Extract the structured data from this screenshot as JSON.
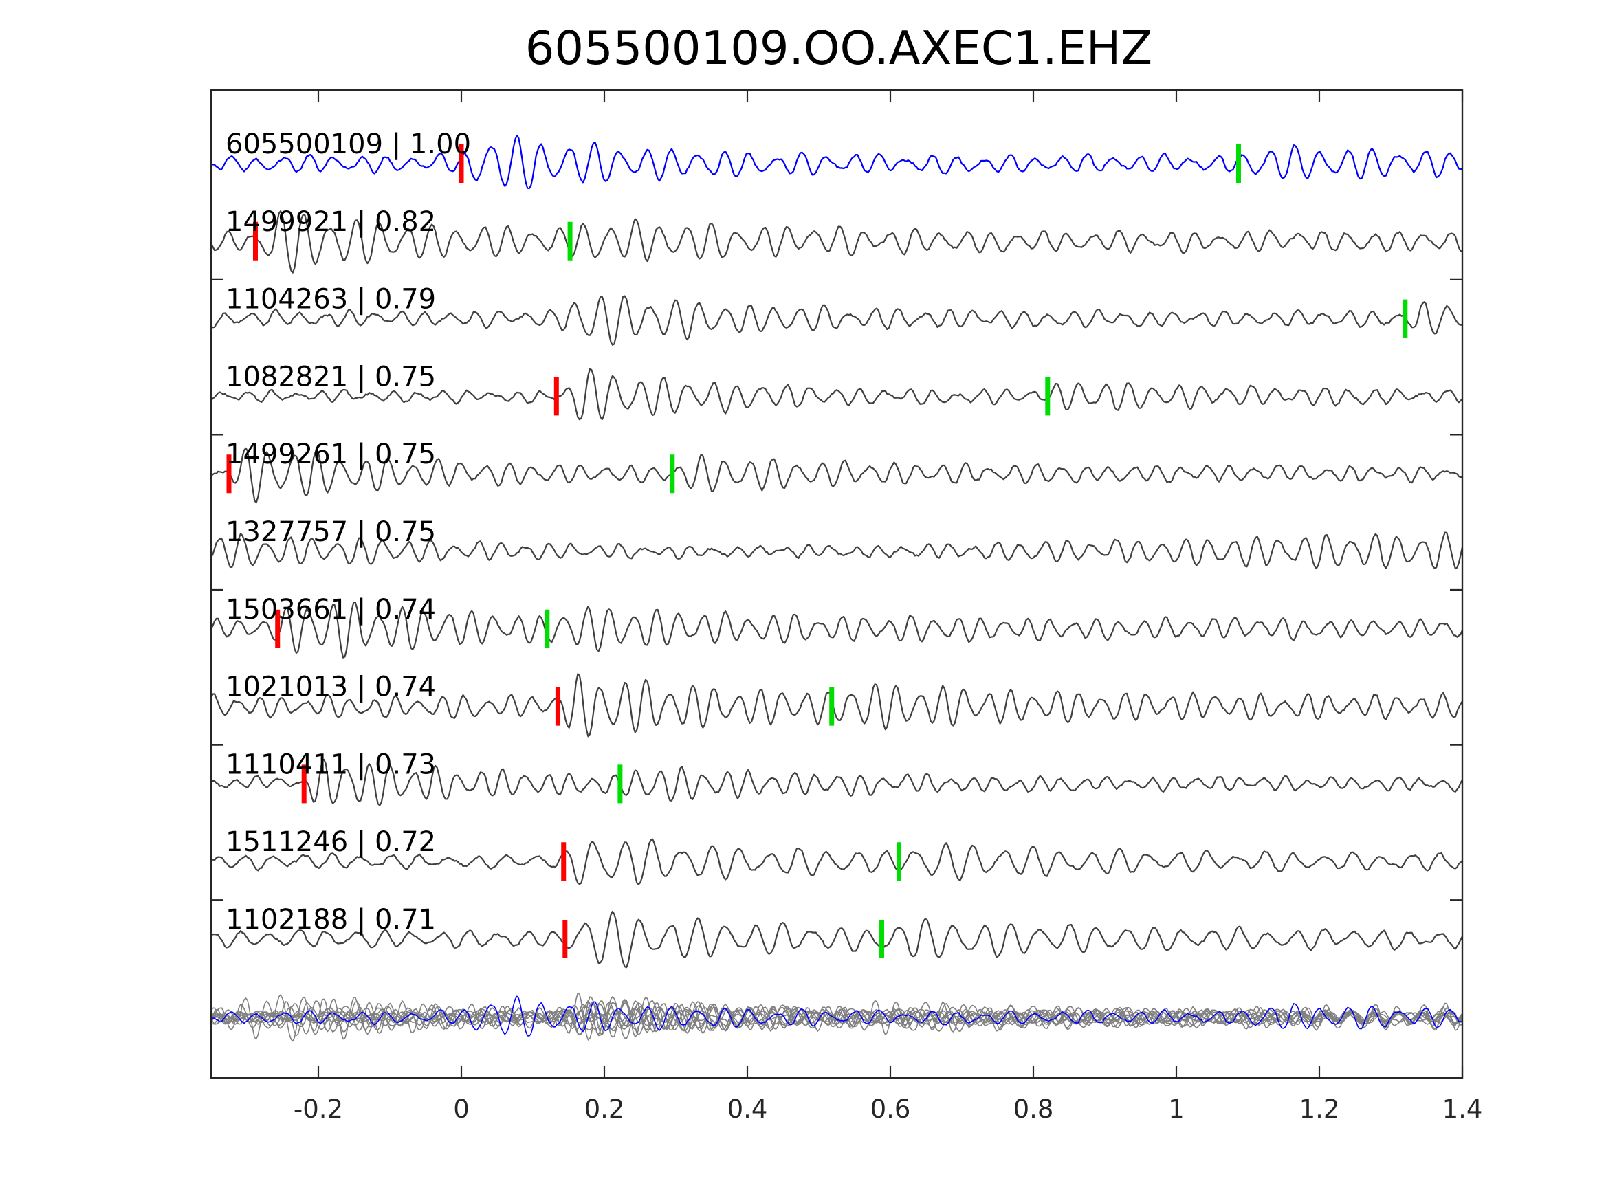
{
  "chart_data": {
    "type": "line",
    "title": "605500109.OO.AXEC1.EHZ",
    "xlabel": "",
    "ylabel": "",
    "xlim": [
      -0.35,
      1.4
    ],
    "xticks": [
      {
        "value": -0.2,
        "label": "-0.2"
      },
      {
        "value": 0,
        "label": "0"
      },
      {
        "value": 0.2,
        "label": "0.2"
      },
      {
        "value": 0.4,
        "label": "0.4"
      },
      {
        "value": 0.6,
        "label": "0.6"
      },
      {
        "value": 0.8,
        "label": "0.8"
      },
      {
        "value": 1,
        "label": "1"
      },
      {
        "value": 1.2,
        "label": "1.2"
      },
      {
        "value": 1.4,
        "label": "1.4"
      }
    ],
    "grid": false,
    "colors": {
      "template": "#0000ff",
      "trace": "#404040",
      "stack": "#808080",
      "p_pick": "#ff0000",
      "s_pick": "#00dd00"
    },
    "series": [
      {
        "label": "605500109 | 1.00",
        "p_pick": 0.0,
        "s_pick": 1.087,
        "color": "#0000ff"
      },
      {
        "label": "1499921 | 0.82",
        "p_pick": -0.288,
        "s_pick": 0.152,
        "color": "#404040"
      },
      {
        "label": "1104263 | 0.79",
        "p_pick": null,
        "s_pick": 1.32,
        "color": "#404040"
      },
      {
        "label": "1082821 | 0.75",
        "p_pick": 0.133,
        "s_pick": 0.82,
        "color": "#404040"
      },
      {
        "label": "1499261 | 0.75",
        "p_pick": -0.325,
        "s_pick": 0.295,
        "color": "#404040"
      },
      {
        "label": "1327757 | 0.75",
        "p_pick": null,
        "s_pick": null,
        "color": "#404040"
      },
      {
        "label": "1503661 | 0.74",
        "p_pick": -0.257,
        "s_pick": 0.12,
        "color": "#404040"
      },
      {
        "label": "1021013 | 0.74",
        "p_pick": 0.135,
        "s_pick": 0.518,
        "color": "#404040"
      },
      {
        "label": "1110411 | 0.73",
        "p_pick": -0.22,
        "s_pick": 0.222,
        "color": "#404040"
      },
      {
        "label": "1511246 | 0.72",
        "p_pick": 0.143,
        "s_pick": 0.612,
        "color": "#404040"
      },
      {
        "label": "1102188 | 0.71",
        "p_pick": 0.145,
        "s_pick": 0.588,
        "color": "#404040"
      }
    ]
  }
}
